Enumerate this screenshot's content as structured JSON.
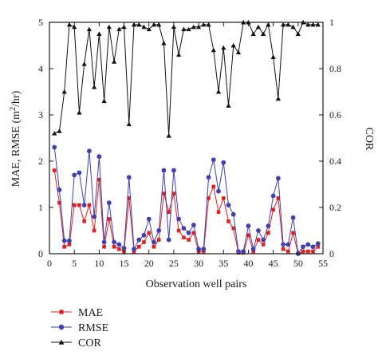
{
  "chart_data": {
    "type": "line",
    "xlabel": "Observation well pairs",
    "ylabel_left": "MAE, RMSE (m",
    "ylabel_left_sup": "2",
    "ylabel_left_tail": "/hr)",
    "ylabel_right": "COR",
    "xlim": [
      0,
      55
    ],
    "ylim_left": [
      0,
      5
    ],
    "ylim_right": [
      0,
      1
    ],
    "x_ticks": [
      0,
      5,
      10,
      15,
      20,
      25,
      30,
      35,
      40,
      45,
      50,
      55
    ],
    "y_left_ticks": [
      0,
      1,
      2,
      3,
      4,
      5
    ],
    "y_right_ticks": [
      0,
      0.2,
      0.4,
      0.6,
      0.8,
      1
    ],
    "y_right_tick_labels": [
      "0",
      "0.2",
      "0.4",
      "0.6",
      "0.8",
      "1"
    ],
    "x": [
      1,
      2,
      3,
      4,
      5,
      6,
      7,
      8,
      9,
      10,
      11,
      12,
      13,
      14,
      15,
      16,
      17,
      18,
      19,
      20,
      21,
      22,
      23,
      24,
      25,
      26,
      27,
      28,
      29,
      30,
      31,
      32,
      33,
      34,
      35,
      36,
      37,
      38,
      39,
      40,
      41,
      42,
      43,
      44,
      45,
      46,
      47,
      48,
      49,
      50,
      51,
      52,
      53,
      54
    ],
    "legend_position": "bottom-left",
    "grid": false,
    "series": [
      {
        "name": "MAE",
        "axis": "left",
        "color": "#e02020",
        "marker": "square",
        "values": [
          1.8,
          1.1,
          0.15,
          0.2,
          1.05,
          1.05,
          0.7,
          1.05,
          0.5,
          1.6,
          0.15,
          0.75,
          0.15,
          0.1,
          0.05,
          1.2,
          0.05,
          0.15,
          0.25,
          0.45,
          0.15,
          0.3,
          1.3,
          0.9,
          1.3,
          0.5,
          0.35,
          0.3,
          0.45,
          0.05,
          0.05,
          1.2,
          1.45,
          0.9,
          1.2,
          0.7,
          0.55,
          0.02,
          0.02,
          0.4,
          0.05,
          0.3,
          0.2,
          0.45,
          0.95,
          1.2,
          0.1,
          0.05,
          0.45,
          0.0,
          0.05,
          0.05,
          0.05,
          0.15
        ]
      },
      {
        "name": "RMSE",
        "axis": "left",
        "color": "#4040b0",
        "marker": "circle",
        "values": [
          2.3,
          1.38,
          0.28,
          0.28,
          1.7,
          1.75,
          1.05,
          2.22,
          0.8,
          2.1,
          0.25,
          1.1,
          0.25,
          0.2,
          0.12,
          1.65,
          0.1,
          0.3,
          0.4,
          0.75,
          0.25,
          0.5,
          1.8,
          0.3,
          1.8,
          0.75,
          0.55,
          0.45,
          0.62,
          0.1,
          0.1,
          1.65,
          2.03,
          1.35,
          1.97,
          1.05,
          0.85,
          0.05,
          0.05,
          0.6,
          0.1,
          0.5,
          0.3,
          0.6,
          1.25,
          1.63,
          0.2,
          0.2,
          0.78,
          0.0,
          0.15,
          0.2,
          0.15,
          0.22
        ]
      },
      {
        "name": "COR",
        "axis": "right",
        "color": "#111111",
        "marker": "triangle",
        "values": [
          0.52,
          0.53,
          0.7,
          0.99,
          0.98,
          0.61,
          0.82,
          0.97,
          0.72,
          0.95,
          0.66,
          0.98,
          0.83,
          0.97,
          0.98,
          0.56,
          0.99,
          0.99,
          0.98,
          0.97,
          0.99,
          0.99,
          0.91,
          0.51,
          0.98,
          0.86,
          0.97,
          0.97,
          0.98,
          0.98,
          0.99,
          0.99,
          0.88,
          0.7,
          0.89,
          0.64,
          0.9,
          0.87,
          1.0,
          1.0,
          0.95,
          0.98,
          0.95,
          0.99,
          0.85,
          0.67,
          0.99,
          0.99,
          0.98,
          0.95,
          1.0,
          0.99,
          0.99,
          0.99
        ]
      }
    ]
  }
}
